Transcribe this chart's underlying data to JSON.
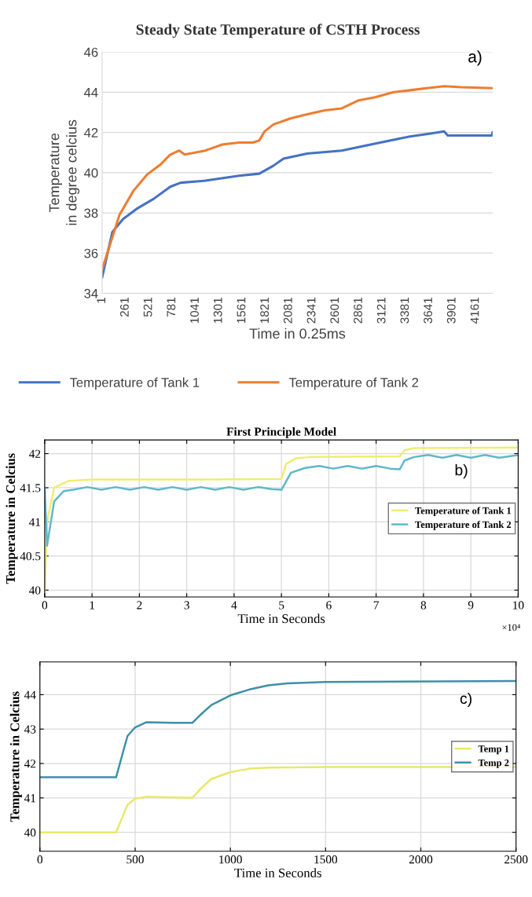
{
  "chart_data": [
    {
      "type": "line",
      "title": "Steady State Temperature of CSTH Process",
      "xlabel": "Time in 0.25ms",
      "ylabel": "Temperature\nin degree celcius",
      "xlim": [
        1,
        4350
      ],
      "xticks": [
        1,
        261,
        521,
        781,
        1041,
        1301,
        1561,
        1821,
        2081,
        2341,
        2601,
        2861,
        3121,
        3381,
        3641,
        3901,
        4161
      ],
      "ylim": [
        34,
        46
      ],
      "yticks": [
        34,
        36,
        38,
        40,
        42,
        44,
        46
      ],
      "grid": "y",
      "legend": "bottom",
      "annotations": [
        "a)"
      ],
      "series": [
        {
          "name": "Temperature of Tank 1",
          "color": "#4472c4",
          "x": [
            1,
            115,
            235,
            385,
            575,
            760,
            875,
            1150,
            1525,
            1750,
            1910,
            2020,
            2285,
            2670,
            3045,
            3430,
            3660,
            3810,
            3850,
            4340,
            4350
          ],
          "values": [
            34.8,
            37.05,
            37.7,
            38.2,
            38.7,
            39.3,
            39.5,
            39.6,
            39.85,
            39.95,
            40.35,
            40.7,
            40.95,
            41.1,
            41.45,
            41.8,
            41.95,
            42.05,
            41.85,
            41.85,
            42.0
          ]
        },
        {
          "name": "Temperature of Tank 2",
          "color": "#ed7d31",
          "x": [
            1,
            194,
            350,
            500,
            650,
            760,
            860,
            920,
            1150,
            1340,
            1525,
            1680,
            1750,
            1810,
            1910,
            2100,
            2285,
            2480,
            2670,
            2860,
            3045,
            3240,
            3430,
            3615,
            3810,
            4000,
            4350
          ],
          "values": [
            35.2,
            37.9,
            39.1,
            39.9,
            40.4,
            40.9,
            41.1,
            40.9,
            41.1,
            41.4,
            41.5,
            41.5,
            41.6,
            42.05,
            42.4,
            42.7,
            42.9,
            43.1,
            43.2,
            43.6,
            43.75,
            44.0,
            44.1,
            44.2,
            44.3,
            44.25,
            44.2
          ]
        }
      ]
    },
    {
      "type": "line",
      "title": "First Principle Model",
      "xlabel": "Time in Seconds",
      "ylabel": "Temperature in Celcius",
      "xlim": [
        0,
        10
      ],
      "xticks": [
        0,
        1,
        2,
        3,
        4,
        5,
        6,
        7,
        8,
        9,
        10
      ],
      "ylim": [
        39.9,
        42.2
      ],
      "yticks": [
        40,
        40.5,
        41,
        41.5,
        42
      ],
      "grid": true,
      "legend": "center right",
      "annotations": [
        "b)",
        "×10⁴"
      ],
      "series": [
        {
          "name": "Temperature of Tank 1",
          "color": "#eeee70",
          "x": [
            0,
            0.05,
            0.2,
            0.5,
            1,
            3,
            5,
            5.1,
            5.3,
            5.6,
            7.5,
            7.6,
            7.8,
            10
          ],
          "values": [
            40.0,
            41.0,
            41.5,
            41.6,
            41.62,
            41.62,
            41.63,
            41.85,
            41.93,
            41.95,
            41.96,
            42.05,
            42.08,
            42.09
          ]
        },
        {
          "name": "Temperature of Tank 2",
          "color": "#5fb8c8",
          "x": [
            0,
            0.05,
            0.2,
            0.4,
            0.6,
            0.9,
            1.2,
            1.5,
            1.8,
            2.1,
            2.4,
            2.7,
            3.0,
            3.3,
            3.6,
            3.9,
            4.2,
            4.5,
            4.8,
            5.0,
            5.2,
            5.5,
            5.8,
            6.1,
            6.4,
            6.7,
            7.0,
            7.3,
            7.5,
            7.6,
            7.8,
            8.1,
            8.4,
            8.7,
            9.0,
            9.3,
            9.6,
            10
          ],
          "values": [
            41.5,
            40.65,
            41.3,
            41.45,
            41.47,
            41.51,
            41.47,
            41.51,
            41.47,
            41.51,
            41.47,
            41.51,
            41.47,
            41.51,
            41.47,
            41.51,
            41.47,
            41.51,
            41.48,
            41.47,
            41.72,
            41.79,
            41.82,
            41.78,
            41.82,
            41.78,
            41.82,
            41.78,
            41.77,
            41.9,
            41.95,
            41.98,
            41.94,
            41.98,
            41.94,
            41.98,
            41.94,
            41.98
          ]
        }
      ]
    },
    {
      "type": "line",
      "xlabel": "Time in Seconds",
      "ylabel": "Temperature in Celcius",
      "xlim": [
        0,
        2500
      ],
      "xticks": [
        0,
        500,
        1000,
        1500,
        2000,
        2500
      ],
      "ylim": [
        39.45,
        44.95
      ],
      "yticks": [
        40,
        41,
        42,
        43,
        44
      ],
      "grid": true,
      "legend": "center right",
      "annotations": [
        "c)"
      ],
      "series": [
        {
          "name": "Temp 1",
          "color": "#e8e86a",
          "x": [
            0,
            400,
            430,
            460,
            500,
            560,
            800,
            850,
            900,
            1000,
            1100,
            1200,
            1500,
            2500
          ],
          "values": [
            40.0,
            40.0,
            40.4,
            40.8,
            40.98,
            41.03,
            41.0,
            41.3,
            41.55,
            41.75,
            41.85,
            41.88,
            41.9,
            41.9
          ]
        },
        {
          "name": "Temp 2",
          "color": "#3f8fa8",
          "x": [
            0,
            400,
            430,
            460,
            500,
            560,
            700,
            800,
            850,
            900,
            1000,
            1100,
            1200,
            1300,
            1500,
            2500
          ],
          "values": [
            41.6,
            41.6,
            42.2,
            42.8,
            43.05,
            43.2,
            43.18,
            43.18,
            43.45,
            43.7,
            43.98,
            44.15,
            44.27,
            44.33,
            44.37,
            44.4
          ]
        }
      ]
    }
  ]
}
